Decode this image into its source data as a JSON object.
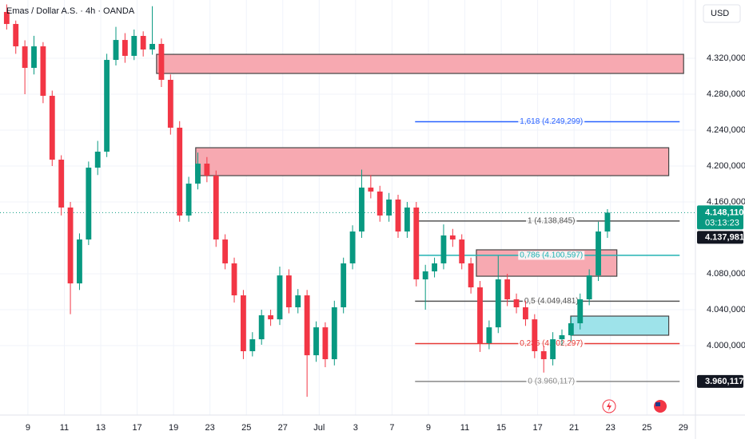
{
  "chart_data": {
    "type": "candlestick",
    "title": "Emas / Dollar A.S. · 4h · OANDA",
    "currency": "USD",
    "x": [
      -7,
      -4,
      -1,
      2,
      5,
      8,
      11,
      14,
      17,
      20,
      23,
      26,
      29,
      32,
      35,
      38,
      41,
      44,
      47,
      50,
      53,
      56,
      59,
      62,
      65,
      68,
      71,
      74,
      77,
      80,
      83,
      86,
      89,
      92,
      95,
      98,
      101,
      104,
      107,
      110,
      113,
      116,
      119,
      122,
      125,
      128,
      131,
      134,
      137,
      140,
      143,
      146,
      149,
      152,
      155,
      158,
      161,
      164,
      167,
      170,
      173,
      176,
      179,
      182,
      185,
      188,
      191
    ],
    "open": [
      4371.6,
      4358.2,
      4333.3,
      4309.3,
      4333.3,
      4278.2,
      4207.1,
      4153.8,
      4069.3,
      4118.2,
      4198.2,
      4216.0,
      4318.2,
      4340.4,
      4322.7,
      4344.9,
      4329.8,
      4336.0,
      4296.0,
      4242.7,
      4144.9,
      4180.4,
      4202.7,
      4189.3,
      4118.2,
      4091.6,
      4056.0,
      3993.8,
      4007.1,
      4033.8,
      4029.3,
      4078.2,
      4042.7,
      4056.0,
      3989.3,
      4020.4,
      3984.9,
      4042.7,
      4091.6,
      4127.1,
      4176.0,
      4171.6,
      4144.9,
      4162.7,
      4127.1,
      4153.8,
      4073.8,
      4082.7,
      4091.6,
      4122.7,
      4118.2,
      4091.6,
      4064.9,
      4002.7,
      4020.4,
      4073.8,
      4051.6,
      4042.7,
      4029.3,
      3993.8,
      3984.9,
      4007.1,
      4011.6,
      4024.9,
      4051.6,
      4078.2,
      4127.1
    ],
    "high": [
      4380,
      4362,
      4340,
      4345,
      4338,
      4284,
      4212,
      4160,
      4125,
      4205,
      4228,
      4325,
      4355,
      4348,
      4352,
      4350,
      4378,
      4342,
      4302,
      4250,
      4188,
      4215,
      4210,
      4195,
      4124,
      4098,
      4062,
      4015,
      4040,
      4040,
      4088,
      4085,
      4063,
      4062,
      4027,
      4026,
      4050,
      4098,
      4134,
      4196,
      4190,
      4178,
      4170,
      4168,
      4160,
      4160,
      4090,
      4098,
      4135,
      4130,
      4124,
      4098,
      4072,
      4028,
      4100,
      4080,
      4058,
      4050,
      4035,
      4000,
      4015,
      4018,
      4032,
      4058,
      4085,
      4138,
      4152
    ],
    "low": [
      4352,
      4325,
      4280,
      4302,
      4270,
      4200,
      4145,
      4035,
      4062,
      4112,
      4190,
      4210,
      4312,
      4315,
      4318,
      4322,
      4324,
      4288,
      4235,
      4138,
      4138,
      4174,
      4182,
      4110,
      4085,
      4048,
      3985,
      3988,
      4001,
      4022,
      4023,
      4036,
      4036,
      3943,
      3982,
      3976,
      3978,
      4036,
      4085,
      4120,
      4164,
      4138,
      4138,
      4120,
      4120,
      4066,
      4040,
      4076,
      4085,
      4110,
      4085,
      4058,
      3993,
      3996,
      4014,
      4044,
      4036,
      4022,
      3986,
      3970,
      3978,
      4000,
      4005,
      4018,
      4045,
      4072,
      4120
    ],
    "close": [
      4358.2,
      4333.3,
      4309.3,
      4333.3,
      4278.2,
      4207.1,
      4153.8,
      4069.3,
      4118.2,
      4198.2,
      4216.0,
      4318.2,
      4340.4,
      4322.7,
      4344.9,
      4329.8,
      4336.0,
      4296.0,
      4242.7,
      4144.9,
      4180.4,
      4202.7,
      4189.3,
      4118.2,
      4091.6,
      4056.0,
      3993.8,
      4007.1,
      4033.8,
      4029.3,
      4078.2,
      4042.7,
      4056.0,
      3989.3,
      4020.4,
      3984.9,
      4042.7,
      4091.6,
      4127.1,
      4176.0,
      4171.6,
      4144.9,
      4162.7,
      4127.1,
      4153.8,
      4073.8,
      4082.7,
      4091.6,
      4122.7,
      4118.2,
      4091.6,
      4064.9,
      4002.7,
      4020.4,
      4073.8,
      4051.6,
      4042.7,
      4029.3,
      3993.8,
      3984.9,
      4007.1,
      4011.6,
      4024.9,
      4051.6,
      4078.2,
      4127.1,
      4148.11
    ],
    "up_color": "#089981",
    "down_color": "#f23645",
    "xlim": [
      -9.2,
      220
    ],
    "xticks": [
      {
        "value": 0,
        "label": "9"
      },
      {
        "value": 12,
        "label": "11"
      },
      {
        "value": 24,
        "label": "13"
      },
      {
        "value": 36,
        "label": "17"
      },
      {
        "value": 48,
        "label": "19"
      },
      {
        "value": 60,
        "label": "23"
      },
      {
        "value": 72,
        "label": "25"
      },
      {
        "value": 84,
        "label": "27"
      },
      {
        "value": 96,
        "label": "Jul"
      },
      {
        "value": 108,
        "label": "3"
      },
      {
        "value": 120,
        "label": "7"
      },
      {
        "value": 132,
        "label": "9"
      },
      {
        "value": 144,
        "label": "11"
      },
      {
        "value": 156,
        "label": "15"
      },
      {
        "value": 168,
        "label": "17"
      },
      {
        "value": 180,
        "label": "21"
      },
      {
        "value": 192,
        "label": "23"
      },
      {
        "value": 204,
        "label": "25"
      },
      {
        "value": 216,
        "label": "29"
      }
    ],
    "ylim": [
      3922.7,
      4384.9
    ],
    "yticks": [
      {
        "value": 4000,
        "label": "4.000,000"
      },
      {
        "value": 4040,
        "label": "4.040,000"
      },
      {
        "value": 4080,
        "label": "4.080,000"
      },
      {
        "value": 4160,
        "label": "4.160,000"
      },
      {
        "value": 4200,
        "label": "4.200,000"
      },
      {
        "value": 4240,
        "label": "4.240,000"
      },
      {
        "value": 4280,
        "label": "4.280,000"
      },
      {
        "value": 4320,
        "label": "4.320,000"
      }
    ],
    "zones": [
      {
        "xlim": [
          42.4,
          216.1
        ],
        "ylim": [
          4303.1,
          4324.4
        ],
        "color": "#f7a9b1"
      },
      {
        "xlim": [
          55.3,
          211.2
        ],
        "ylim": [
          4189.3,
          4220.4
        ],
        "color": "#f7a9b1"
      },
      {
        "xlim": [
          147.8,
          194.1
        ],
        "ylim": [
          4077.3,
          4106.7
        ],
        "color": "#f7a9b1"
      },
      {
        "xlim": [
          178.9,
          211.2
        ],
        "ylim": [
          4011.6,
          4032.9
        ],
        "color": "#9ee3ea"
      }
    ],
    "fib_xlim": [
      127.6,
      214.8
    ],
    "fib_levels": [
      {
        "label": "1,618 (4.249,299)",
        "value": 4249.299,
        "color": "#2962ff"
      },
      {
        "label": "1 (4.138,845)",
        "value": 4138.845,
        "color": "#555555"
      },
      {
        "label": "0,786 (4.100,597)",
        "value": 4100.597,
        "color": "#22b2b2"
      },
      {
        "label": "0,5 (4.049,481)",
        "value": 4049.481,
        "color": "#555555"
      },
      {
        "label": "0,236 (4.002,297)",
        "value": 4002.297,
        "color": "#e53935"
      },
      {
        "label": "0 (3.960,117)",
        "value": 3960.117,
        "color": "#888888"
      }
    ],
    "last_price": {
      "value": 4148.11,
      "label": "4.148,110",
      "countdown": "03:13:23",
      "color": "#089981"
    },
    "price_labels": [
      {
        "value": 4137.981,
        "label": "4.137,981"
      },
      {
        "value": 3960.117,
        "label": "3.960,117"
      }
    ]
  }
}
